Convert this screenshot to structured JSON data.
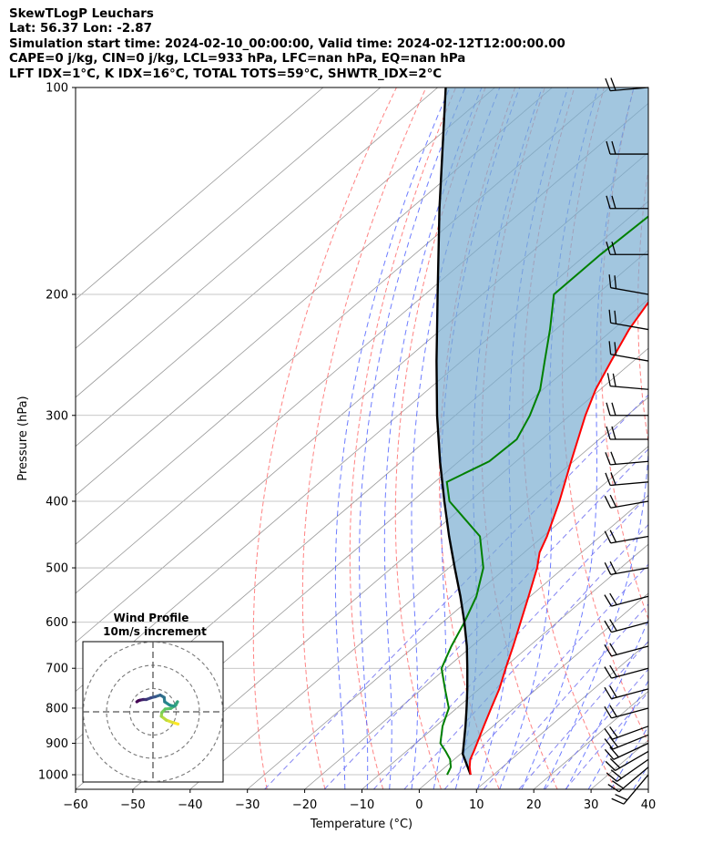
{
  "header": {
    "line1": "SkewTLogP Leuchars",
    "line2": "Lat: 56.37   Lon: -2.87",
    "line3": "Simulation start time: 2024-02-10_00:00:00, Valid time: 2024-02-12T12:00:00.00",
    "line4": "CAPE=0 j/kg, CIN=0 j/kg, LCL=933 hPa, LFC=nan hPa, EQ=nan hPa",
    "line5": "LFT IDX=1°C, K IDX=16°C, TOTAL TOTS=59°C, SHWTR_IDX=2°C"
  },
  "chart_data": {
    "type": "line",
    "subtype": "skew-t log-p",
    "xlabel": "Temperature (°C)",
    "ylabel": "Pressure (hPa)",
    "xlim": [
      -60,
      40
    ],
    "ylim": [
      1050,
      100
    ],
    "y_scale": "log",
    "grid": true,
    "x_ticks": [
      "−60",
      "−50",
      "−40",
      "−30",
      "−20",
      "−10",
      "0",
      "10",
      "20",
      "30",
      "40"
    ],
    "y_ticks": [
      100,
      200,
      300,
      400,
      500,
      600,
      700,
      800,
      900,
      1000
    ],
    "colors": {
      "temperature": "#ff0000",
      "dewpoint": "#008000",
      "parcel": "#000000",
      "cape_fill": "#7aaed2",
      "dry_adiabats": "#ff5a5a",
      "moist_adiabats": "#3c50ff",
      "mixing_ratio": "#7070f0",
      "isotherms": "#999999",
      "isobars": "#b4b4b4"
    },
    "series": [
      {
        "key": "temperature",
        "points": [
          [
            1000,
            6.0
          ],
          [
            975,
            4.3
          ],
          [
            950,
            2.8
          ],
          [
            925,
            1.8
          ],
          [
            900,
            0.7
          ],
          [
            850,
            -1.6
          ],
          [
            800,
            -4.0
          ],
          [
            750,
            -6.5
          ],
          [
            700,
            -9.6
          ],
          [
            650,
            -12.8
          ],
          [
            600,
            -16.4
          ],
          [
            550,
            -20.3
          ],
          [
            500,
            -24.6
          ],
          [
            475,
            -27.3
          ],
          [
            450,
            -29.3
          ],
          [
            400,
            -34.3
          ],
          [
            350,
            -40.4
          ],
          [
            300,
            -47.3
          ],
          [
            275,
            -50.8
          ],
          [
            250,
            -53.9
          ],
          [
            225,
            -57.2
          ],
          [
            200,
            -60.0
          ],
          [
            175,
            -61.5
          ],
          [
            150,
            -61.0
          ],
          [
            125,
            -62.5
          ],
          [
            100,
            -65.5
          ]
        ]
      },
      {
        "key": "dewpoint",
        "points": [
          [
            1000,
            1.9
          ],
          [
            975,
            1.0
          ],
          [
            950,
            -0.7
          ],
          [
            925,
            -3.1
          ],
          [
            900,
            -5.7
          ],
          [
            850,
            -8.8
          ],
          [
            800,
            -11.4
          ],
          [
            750,
            -16.0
          ],
          [
            700,
            -20.8
          ],
          [
            650,
            -23.6
          ],
          [
            600,
            -26.2
          ],
          [
            550,
            -29.4
          ],
          [
            500,
            -34.0
          ],
          [
            450,
            -41.0
          ],
          [
            400,
            -53.5
          ],
          [
            375,
            -57.9
          ],
          [
            350,
            -54.7
          ],
          [
            325,
            -54.4
          ],
          [
            300,
            -57.0
          ],
          [
            275,
            -60.5
          ],
          [
            250,
            -65.5
          ],
          [
            225,
            -71.0
          ],
          [
            200,
            -77.5
          ],
          [
            175,
            -77.5
          ],
          [
            150,
            -76.8
          ],
          [
            125,
            -76.5
          ],
          [
            100,
            -77.0
          ]
        ]
      },
      {
        "key": "parcel",
        "points": [
          [
            1000,
            6.0
          ],
          [
            933,
            0.4
          ],
          [
            900,
            -1.6
          ],
          [
            850,
            -4.8
          ],
          [
            800,
            -8.3
          ],
          [
            750,
            -12.1
          ],
          [
            700,
            -16.3
          ],
          [
            650,
            -20.9
          ],
          [
            600,
            -26.2
          ],
          [
            550,
            -32.2
          ],
          [
            500,
            -39.0
          ],
          [
            450,
            -46.4
          ],
          [
            400,
            -54.4
          ],
          [
            350,
            -63.3
          ],
          [
            300,
            -73.2
          ],
          [
            250,
            -84.4
          ],
          [
            200,
            -97.8
          ],
          [
            150,
            -115.0
          ],
          [
            100,
            -138.6
          ]
        ]
      }
    ],
    "wind_barbs": {
      "speed_unit": "knots",
      "levels_hpa": [
        1000,
        975,
        950,
        925,
        900,
        875,
        850,
        800,
        750,
        700,
        650,
        600,
        550,
        500,
        450,
        400,
        375,
        350,
        325,
        300,
        275,
        250,
        225,
        200,
        175,
        150,
        125,
        100
      ],
      "speeds": [
        20,
        20,
        20,
        20,
        20,
        20,
        20,
        20,
        20,
        20,
        20,
        20,
        20,
        20,
        20,
        20,
        20,
        20,
        20,
        20,
        20,
        20,
        20,
        20,
        20,
        20,
        20,
        20
      ],
      "directions_deg": [
        220,
        230,
        235,
        240,
        245,
        248,
        250,
        255,
        255,
        255,
        255,
        255,
        255,
        260,
        260,
        260,
        265,
        265,
        270,
        270,
        275,
        280,
        280,
        280,
        270,
        270,
        270,
        265
      ]
    },
    "hodograph": {
      "title_line1": "Wind Profile",
      "title_line2": "10m/s increment",
      "rings": 3,
      "points_uv": [
        [
          4.5,
          -2.2
        ],
        [
          3.5,
          -1.9
        ],
        [
          2.4,
          -1.5
        ],
        [
          1.5,
          -0.8
        ],
        [
          1.6,
          -0.1
        ],
        [
          2.2,
          0.5
        ],
        [
          3.2,
          0.6
        ],
        [
          4.1,
          1.2
        ],
        [
          4.4,
          1.8
        ],
        [
          3.8,
          1.0
        ],
        [
          3.0,
          1.2
        ],
        [
          2.1,
          1.8
        ],
        [
          2.0,
          2.6
        ],
        [
          1.3,
          3.0
        ],
        [
          0.4,
          2.7
        ],
        [
          -0.4,
          2.5
        ],
        [
          -1.2,
          2.2
        ],
        [
          -1.8,
          2.2
        ],
        [
          -2.3,
          2.1
        ],
        [
          -2.6,
          2.0
        ],
        [
          -2.9,
          1.8
        ]
      ]
    }
  }
}
